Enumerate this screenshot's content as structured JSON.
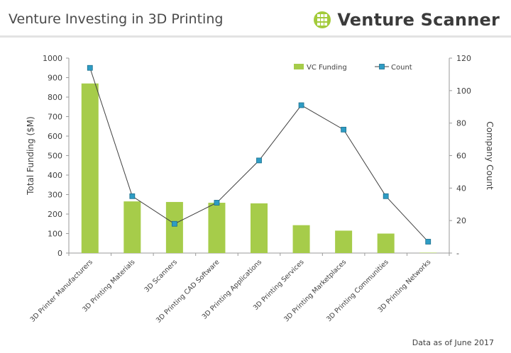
{
  "header": {
    "title": "Venture Investing in 3D Printing",
    "brand": "Venture Scanner",
    "brand_icon": "venture-scanner-logo-icon",
    "brand_color": "#a3cb3b"
  },
  "footnote": "Data as of June 2017",
  "chart_data": {
    "type": "bar+line",
    "categories": [
      "3D Printer Manufacturers",
      "3D Printing Materials",
      "3D Scanners",
      "3D Printing CAD Software",
      "3D Printing Applications",
      "3D Printing Services",
      "3D Printing Marketplaces",
      "3D Printing Communities",
      "3D Printing Networks"
    ],
    "series": [
      {
        "name": "VC Funding",
        "type": "bar",
        "axis": "left",
        "color": "#a6cc4a",
        "values": [
          870,
          265,
          262,
          258,
          255,
          143,
          115,
          100,
          2
        ]
      },
      {
        "name": "Count",
        "type": "line",
        "axis": "right",
        "color": "#2e9cc4",
        "line_color": "#404040",
        "values": [
          114,
          35,
          18,
          31,
          57,
          91,
          76,
          35,
          7
        ]
      }
    ],
    "ylabel": "Total Funding ($M)",
    "y2label": "Company Count",
    "ylim": [
      0,
      1000
    ],
    "y2lim": [
      0,
      120
    ],
    "yticks": [
      "0",
      "100",
      "200",
      "300",
      "400",
      "500",
      "600",
      "700",
      "800",
      "900",
      "1000"
    ],
    "y2ticks": [
      "-",
      "20",
      "40",
      "60",
      "80",
      "100",
      "120"
    ],
    "legend_position": "top-right",
    "grid": false
  }
}
